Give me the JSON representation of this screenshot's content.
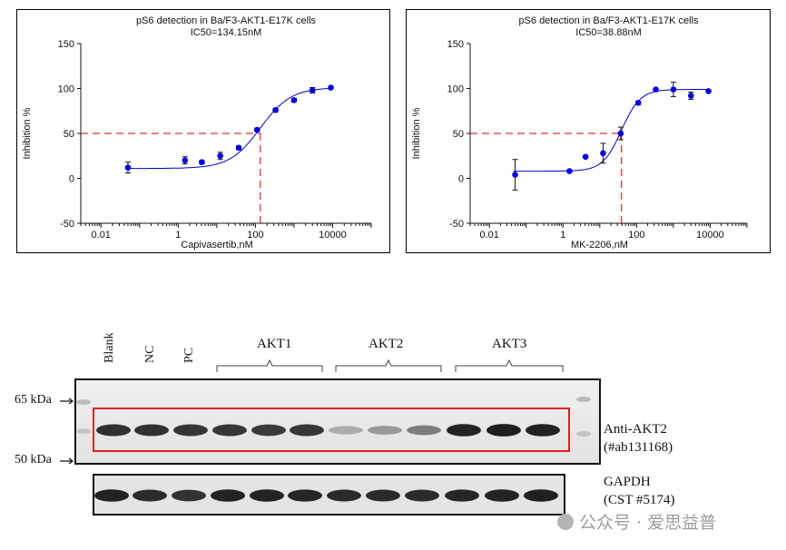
{
  "chart_data": [
    {
      "type": "scatter",
      "title": "pS6  detection  in  Ba/F3-AKT1-E17K  cells",
      "subtitle": "IC50=134.15nM",
      "xlabel": "Capivasertib,nM",
      "ylabel": "Inhibition %",
      "xscale": "log",
      "xlim": [
        0.003,
        100000
      ],
      "ylim": [
        -50,
        150
      ],
      "x_ticks": [
        "0.01",
        "1",
        "100",
        "10000"
      ],
      "y_ticks": [
        "-50",
        "0",
        "50",
        "100",
        "150"
      ],
      "ic50": 134.15,
      "x": [
        0.05,
        1.5,
        4.1,
        12.3,
        37,
        111,
        333,
        1000,
        3000,
        9000
      ],
      "y": [
        12,
        20,
        18,
        25,
        34,
        54,
        76,
        87,
        98,
        101
      ],
      "err": [
        6,
        4,
        2,
        4,
        2,
        2,
        2,
        2,
        3,
        1
      ],
      "fit": {
        "bottom": 11,
        "top": 101,
        "ic50": 134.15,
        "hill": 1.1
      },
      "colors": {
        "points": "#0000e0",
        "fit": "#0000c0",
        "guide": "#cc0000"
      }
    },
    {
      "type": "scatter",
      "title": "pS6  detection  in  Ba/F3-AKT1-E17K  cells",
      "subtitle": "IC50=38.88nM",
      "xlabel": "MK-2206,nM",
      "ylabel": "Inhibition %",
      "xscale": "log",
      "xlim": [
        0.003,
        100000
      ],
      "ylim": [
        -50,
        150
      ],
      "x_ticks": [
        "0.01",
        "1",
        "100",
        "10000"
      ],
      "y_ticks": [
        "-50",
        "0",
        "50",
        "100",
        "150"
      ],
      "ic50": 38.88,
      "x": [
        0.05,
        1.5,
        4.1,
        12.3,
        37,
        111,
        333,
        1000,
        3000,
        9000
      ],
      "y": [
        4,
        8,
        24,
        28,
        50,
        84,
        99,
        99,
        92,
        97
      ],
      "err": [
        17,
        1,
        1,
        11,
        7,
        2,
        1,
        8,
        4,
        1
      ],
      "fit": {
        "bottom": 8,
        "top": 99,
        "ic50": 38.88,
        "hill": 1.7
      },
      "colors": {
        "points": "#0000e0",
        "fit": "#0000c0",
        "guide": "#cc0000"
      }
    }
  ],
  "western_blot": {
    "lanes": [
      "Blank",
      "NC",
      "PC"
    ],
    "groups": [
      "AKT1",
      "AKT2",
      "AKT3"
    ],
    "markers": [
      "65 kDa",
      "50 kDa"
    ],
    "antibody_label": [
      "Anti-AKT2",
      "(#ab131168)"
    ],
    "loading_label": [
      "GAPDH",
      "(CST #5174)"
    ],
    "akt2_band_intensity": [
      0.85,
      0.85,
      0.82,
      0.82,
      0.8,
      0.82,
      0.2,
      0.3,
      0.45,
      0.92,
      0.95,
      0.93
    ],
    "gapdh_band_intensity": [
      0.9,
      0.85,
      0.8,
      0.9,
      0.9,
      0.88,
      0.85,
      0.85,
      0.85,
      0.88,
      0.9,
      0.92
    ],
    "highlight_color": "#e02020"
  },
  "watermark": "公众号 · 爱思益普"
}
